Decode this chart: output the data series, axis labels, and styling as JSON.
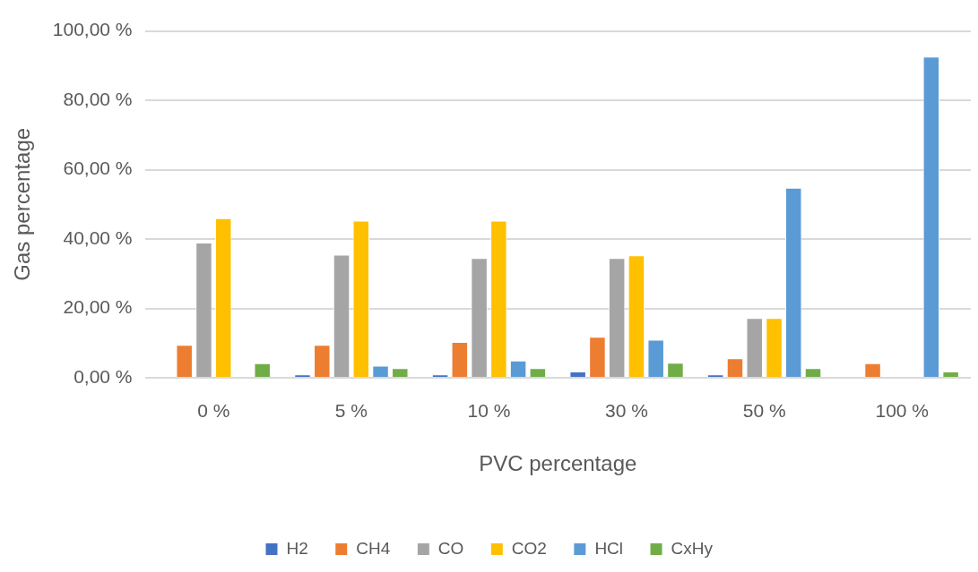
{
  "chart_data": {
    "type": "bar",
    "xlabel": "PVC percentage",
    "ylabel": "Gas percentage",
    "categories": [
      "0 %",
      "5 %",
      "10 %",
      "30 %",
      "50 %",
      "100 %"
    ],
    "series": [
      {
        "name": "H2",
        "color": "#4472c4",
        "values": [
          0,
          1,
          1,
          1.8,
          1,
          0
        ]
      },
      {
        "name": "CH4",
        "color": "#ed7d31",
        "values": [
          9.5,
          9.5,
          10.3,
          11.8,
          5.6,
          4.2
        ]
      },
      {
        "name": "CO",
        "color": "#a5a5a5",
        "values": [
          39,
          35.5,
          34.5,
          34.5,
          17.2,
          0
        ]
      },
      {
        "name": "CO2",
        "color": "#ffc000",
        "values": [
          46,
          45.3,
          45.3,
          35.3,
          17.2,
          0
        ]
      },
      {
        "name": "HCl",
        "color": "#5b9bd5",
        "values": [
          0,
          3.5,
          5,
          11,
          54.8,
          92.6
        ]
      },
      {
        "name": "CxHy",
        "color": "#70ad47",
        "values": [
          4.2,
          2.8,
          2.8,
          4.3,
          2.8,
          1.8
        ]
      }
    ],
    "ylim": [
      0,
      100
    ],
    "yticks": [
      {
        "value": 0,
        "label": "0,00 %"
      },
      {
        "value": 20,
        "label": "20,00 %"
      },
      {
        "value": 40,
        "label": "40,00 %"
      },
      {
        "value": 60,
        "label": "60,00 %"
      },
      {
        "value": 80,
        "label": "80,00 %"
      },
      {
        "value": 100,
        "label": "100,00 %"
      }
    ],
    "grid": "y",
    "legend": "bottom"
  }
}
